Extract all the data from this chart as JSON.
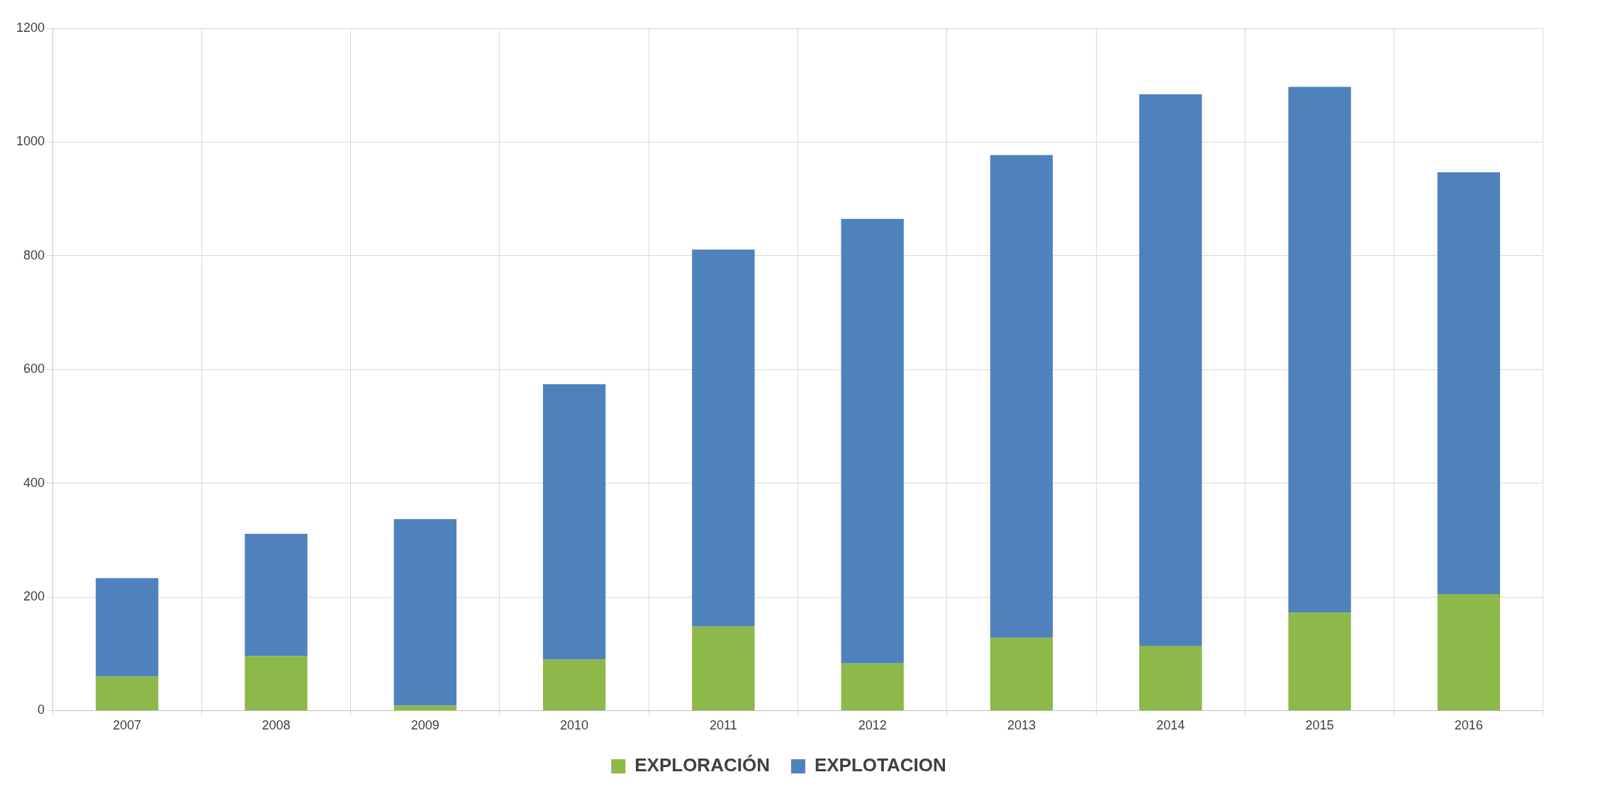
{
  "chart_data": {
    "type": "bar",
    "stacked": true,
    "categories": [
      "2007",
      "2008",
      "2009",
      "2010",
      "2011",
      "2012",
      "2013",
      "2014",
      "2015",
      "2016"
    ],
    "series": [
      {
        "name": "EXPLORACIÓN",
        "color": "#8db84a",
        "values": [
          60,
          96,
          9,
          90,
          148,
          83,
          128,
          114,
          172,
          205
        ]
      },
      {
        "name": "EXPLOTACION",
        "color": "#4f81bd",
        "values": [
          173,
          215,
          328,
          484,
          663,
          782,
          849,
          970,
          925,
          742
        ]
      }
    ],
    "ylim": [
      0,
      1200
    ],
    "yticks": [
      0,
      200,
      400,
      600,
      800,
      1000,
      1200
    ],
    "grid": true,
    "legend": "bottom"
  }
}
